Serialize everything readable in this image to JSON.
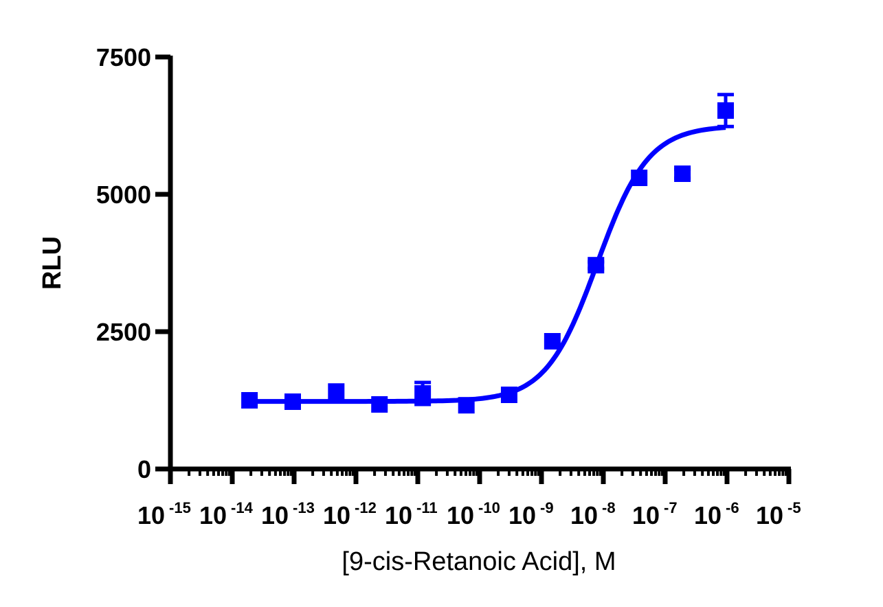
{
  "chart_data": {
    "type": "scatter",
    "title": "",
    "xlabel": "[9-cis-Retanoic Acid], M",
    "ylabel": "RLU",
    "xscale": "log",
    "xlim": [
      1e-15,
      1e-05
    ],
    "ylim": [
      0,
      7500
    ],
    "x_ticks": [
      {
        "base": "10",
        "exp": "-15",
        "value": 1e-15
      },
      {
        "base": "10",
        "exp": "-14",
        "value": 1e-14
      },
      {
        "base": "10",
        "exp": "-13",
        "value": 1e-13
      },
      {
        "base": "10",
        "exp": "-12",
        "value": 1e-12
      },
      {
        "base": "10",
        "exp": "-11",
        "value": 1e-11
      },
      {
        "base": "10",
        "exp": "-10",
        "value": 1e-10
      },
      {
        "base": "10",
        "exp": "-9",
        "value": 1e-09
      },
      {
        "base": "10",
        "exp": "-8",
        "value": 1e-08
      },
      {
        "base": "10",
        "exp": "-7",
        "value": 1e-07
      },
      {
        "base": "10",
        "exp": "-6",
        "value": 1e-06
      },
      {
        "base": "10",
        "exp": "-5",
        "value": 1e-05
      }
    ],
    "y_ticks": [
      "0",
      "2500",
      "5000",
      "7500"
    ],
    "grid": false,
    "legend": null,
    "color": "#0000FF",
    "series": [
      {
        "name": "9-cis-Retanoic Acid",
        "marker": "square",
        "points": [
          {
            "x": 1.9e-14,
            "y": 1250,
            "err": 0
          },
          {
            "x": 9.5e-14,
            "y": 1225,
            "err": 0
          },
          {
            "x": 4.8e-13,
            "y": 1410,
            "err": 0
          },
          {
            "x": 2.4e-12,
            "y": 1175,
            "err": 0
          },
          {
            "x": 1.2e-11,
            "y": 1375,
            "err": 200
          },
          {
            "x": 6.1e-11,
            "y": 1160,
            "err": 0
          },
          {
            "x": 3e-10,
            "y": 1350,
            "err": 0
          },
          {
            "x": 1.5e-09,
            "y": 2325,
            "err": 0
          },
          {
            "x": 7.6e-09,
            "y": 3710,
            "err": 60
          },
          {
            "x": 3.8e-08,
            "y": 5300,
            "err": 0
          },
          {
            "x": 1.9e-07,
            "y": 5375,
            "err": 80
          },
          {
            "x": 9.5e-07,
            "y": 6525,
            "err": 290
          }
        ]
      }
    ],
    "fit": {
      "model": "4PL sigmoidal dose-response",
      "bottom": 1230,
      "top": 6250,
      "logEC50": -8.1,
      "hill": 1.05,
      "x_range": [
        1.9e-14,
        9.5e-07
      ]
    }
  }
}
